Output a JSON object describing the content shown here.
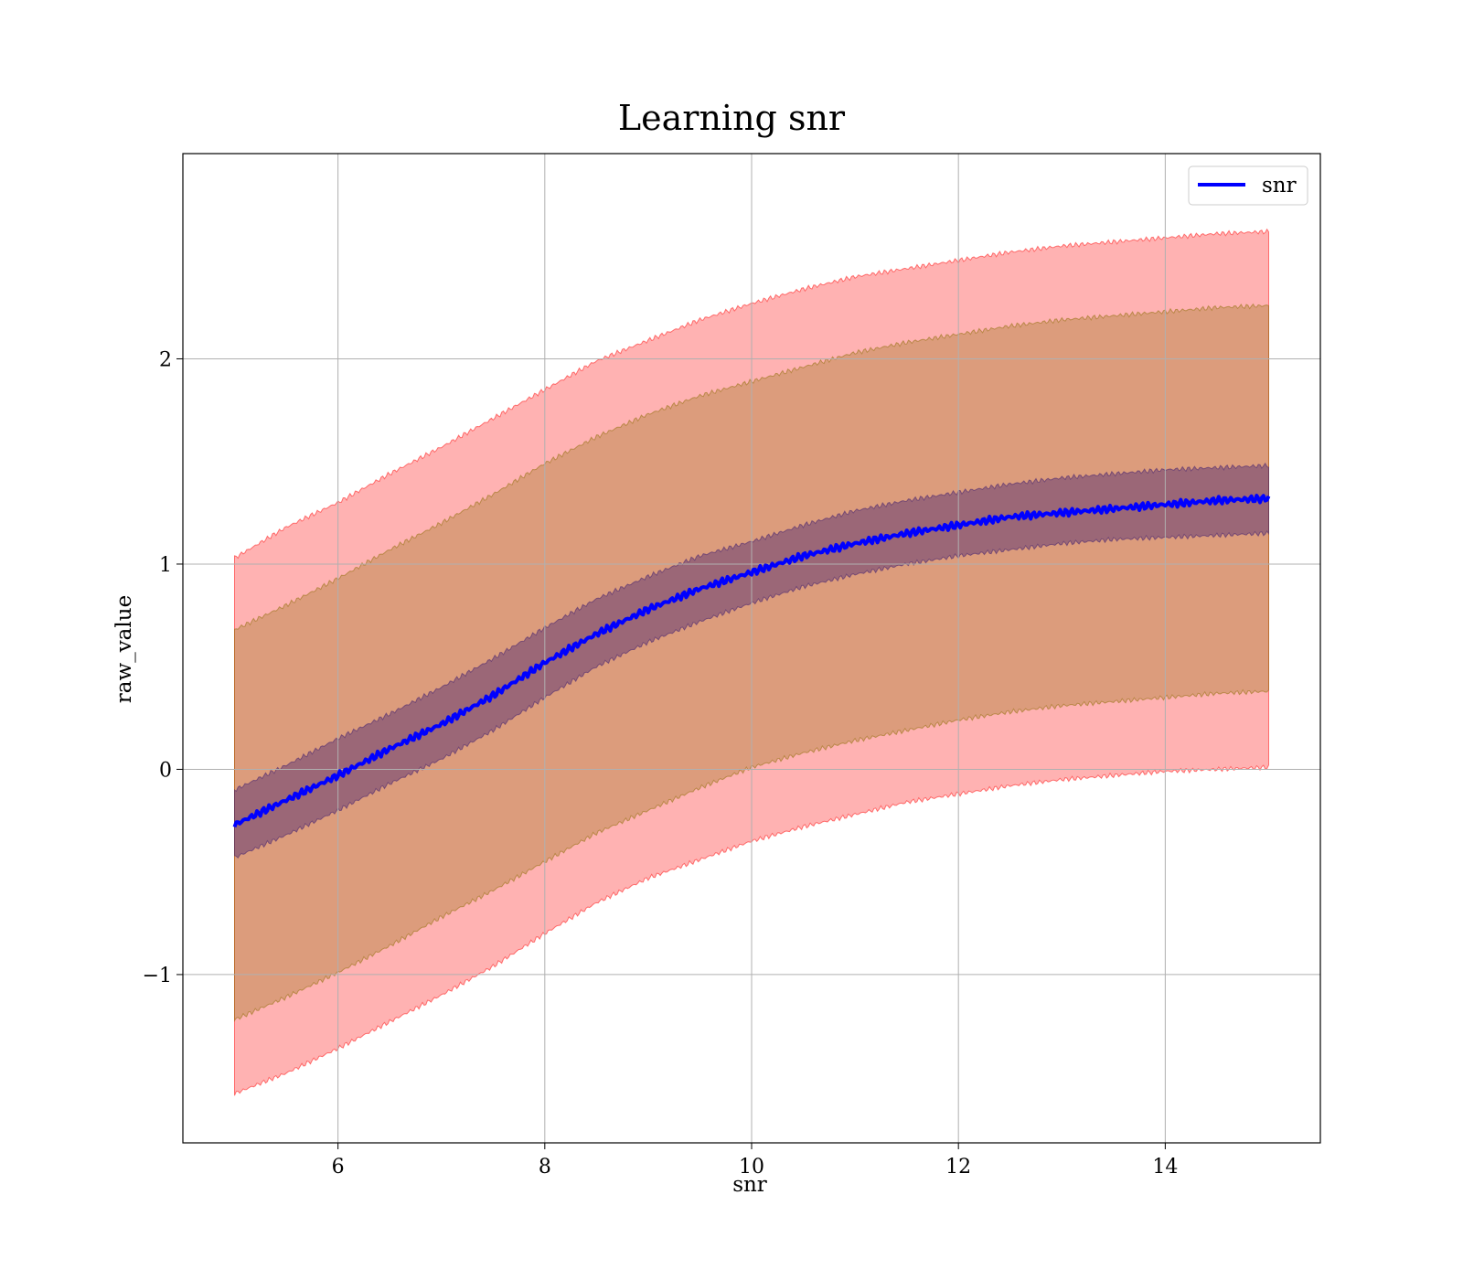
{
  "chart_data": {
    "type": "line",
    "title": "Learning snr",
    "xlabel": "snr",
    "ylabel": "raw_value",
    "xlim": [
      4.5,
      15.5
    ],
    "ylim": [
      -1.82,
      3.0
    ],
    "grid": true,
    "legend_placement": "top-right",
    "x_ticks": [
      {
        "value": 6,
        "label": "6"
      },
      {
        "value": 8,
        "label": "8"
      },
      {
        "value": 10,
        "label": "10"
      },
      {
        "value": 12,
        "label": "12"
      },
      {
        "value": 14,
        "label": "14"
      }
    ],
    "y_ticks": [
      {
        "value": -1,
        "label": "−1"
      },
      {
        "value": 0,
        "label": "0"
      },
      {
        "value": 1,
        "label": "1"
      },
      {
        "value": 2,
        "label": "2"
      }
    ],
    "x": [
      5,
      5.5,
      6,
      6.5,
      7,
      7.5,
      8,
      8.5,
      9,
      9.5,
      10,
      10.5,
      11,
      11.5,
      12,
      12.5,
      13,
      13.5,
      14,
      14.5,
      15
    ],
    "series": [
      {
        "name": "snr",
        "color": "#0000ff",
        "values": [
          -0.27,
          -0.15,
          -0.03,
          0.1,
          0.22,
          0.36,
          0.52,
          0.66,
          0.78,
          0.88,
          0.96,
          1.04,
          1.1,
          1.15,
          1.19,
          1.23,
          1.25,
          1.27,
          1.29,
          1.31,
          1.32
        ]
      }
    ],
    "bands": [
      {
        "color": "#ff0000",
        "opacity": 0.3,
        "upper": [
          1.03,
          1.18,
          1.3,
          1.44,
          1.57,
          1.71,
          1.85,
          1.99,
          2.09,
          2.19,
          2.27,
          2.34,
          2.4,
          2.44,
          2.48,
          2.52,
          2.55,
          2.57,
          2.59,
          2.61,
          2.62
        ],
        "lower": [
          -1.58,
          -1.48,
          -1.36,
          -1.23,
          -1.1,
          -0.96,
          -0.8,
          -0.65,
          -0.53,
          -0.44,
          -0.35,
          -0.28,
          -0.22,
          -0.16,
          -0.12,
          -0.08,
          -0.05,
          -0.03,
          -0.01,
          0.0,
          0.01
        ]
      },
      {
        "color": "#8b6b00",
        "opacity": 0.3,
        "upper": [
          0.68,
          0.8,
          0.93,
          1.07,
          1.2,
          1.34,
          1.49,
          1.62,
          1.73,
          1.82,
          1.89,
          1.96,
          2.03,
          2.08,
          2.12,
          2.16,
          2.19,
          2.21,
          2.23,
          2.25,
          2.26
        ],
        "lower": [
          -1.22,
          -1.11,
          -0.99,
          -0.86,
          -0.72,
          -0.59,
          -0.45,
          -0.31,
          -0.2,
          -0.09,
          0.01,
          0.08,
          0.14,
          0.19,
          0.24,
          0.28,
          0.31,
          0.33,
          0.35,
          0.37,
          0.38
        ]
      },
      {
        "color": "#3a1a70",
        "opacity": 0.4,
        "upper": [
          -0.1,
          0.02,
          0.15,
          0.27,
          0.4,
          0.54,
          0.69,
          0.83,
          0.94,
          1.04,
          1.11,
          1.19,
          1.26,
          1.31,
          1.35,
          1.39,
          1.42,
          1.44,
          1.46,
          1.47,
          1.48
        ],
        "lower": [
          -0.43,
          -0.32,
          -0.2,
          -0.07,
          0.05,
          0.19,
          0.35,
          0.5,
          0.62,
          0.72,
          0.81,
          0.89,
          0.95,
          1.0,
          1.04,
          1.07,
          1.1,
          1.12,
          1.13,
          1.14,
          1.15
        ]
      }
    ]
  }
}
